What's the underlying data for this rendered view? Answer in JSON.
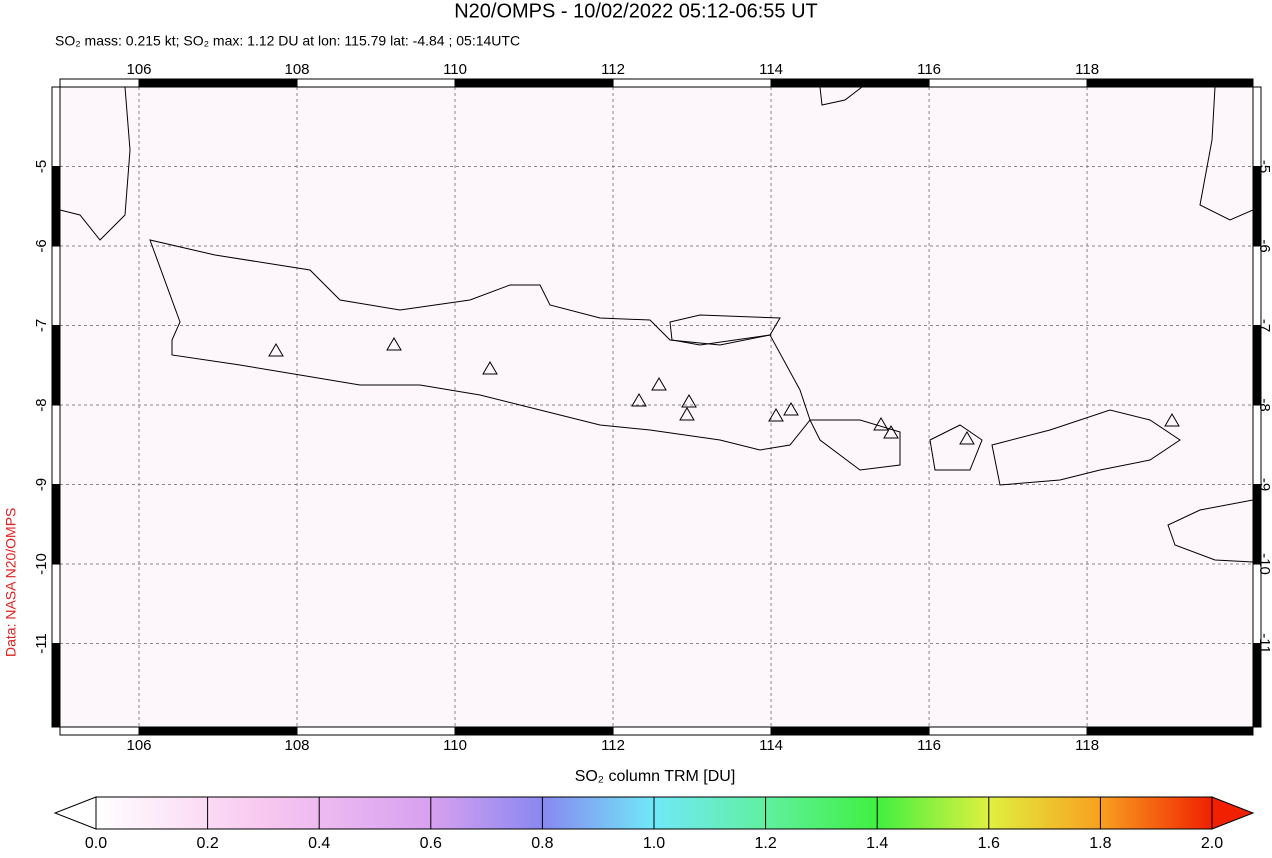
{
  "map": {
    "title": "N20/OMPS - 10/02/2022 05:12-06:55 UT",
    "subtitle": "SO₂ mass: 0.215 kt; SO₂ max: 1.12 DU at lon: 115.79 lat: -4.84 ; 05:14UTC",
    "credit": "Data: NASA N20/OMPS",
    "xlim": [
      105,
      120.1
    ],
    "ylim": [
      -12.05,
      -4
    ],
    "xticks": [
      106,
      108,
      110,
      112,
      114,
      116,
      118
    ],
    "yticks": [
      -5,
      -6,
      -7,
      -8,
      -9,
      -10,
      -11
    ],
    "colorbar": {
      "label": "SO₂ column TRM [DU]",
      "lim": [
        0,
        2
      ],
      "ticks": [
        {
          "value": 0,
          "label": "0.0"
        },
        {
          "value": 0.2,
          "label": "0.2"
        },
        {
          "value": 0.4,
          "label": "0.4"
        },
        {
          "value": 0.6,
          "label": "0.6"
        },
        {
          "value": 0.8,
          "label": "0.8"
        },
        {
          "value": 1,
          "label": "1.0"
        },
        {
          "value": 1.2,
          "label": "1.2"
        },
        {
          "value": 1.4,
          "label": "1.4"
        },
        {
          "value": 1.6,
          "label": "1.6"
        },
        {
          "value": 1.8,
          "label": "1.8"
        },
        {
          "value": 2,
          "label": "2.0"
        }
      ]
    }
  }
}
